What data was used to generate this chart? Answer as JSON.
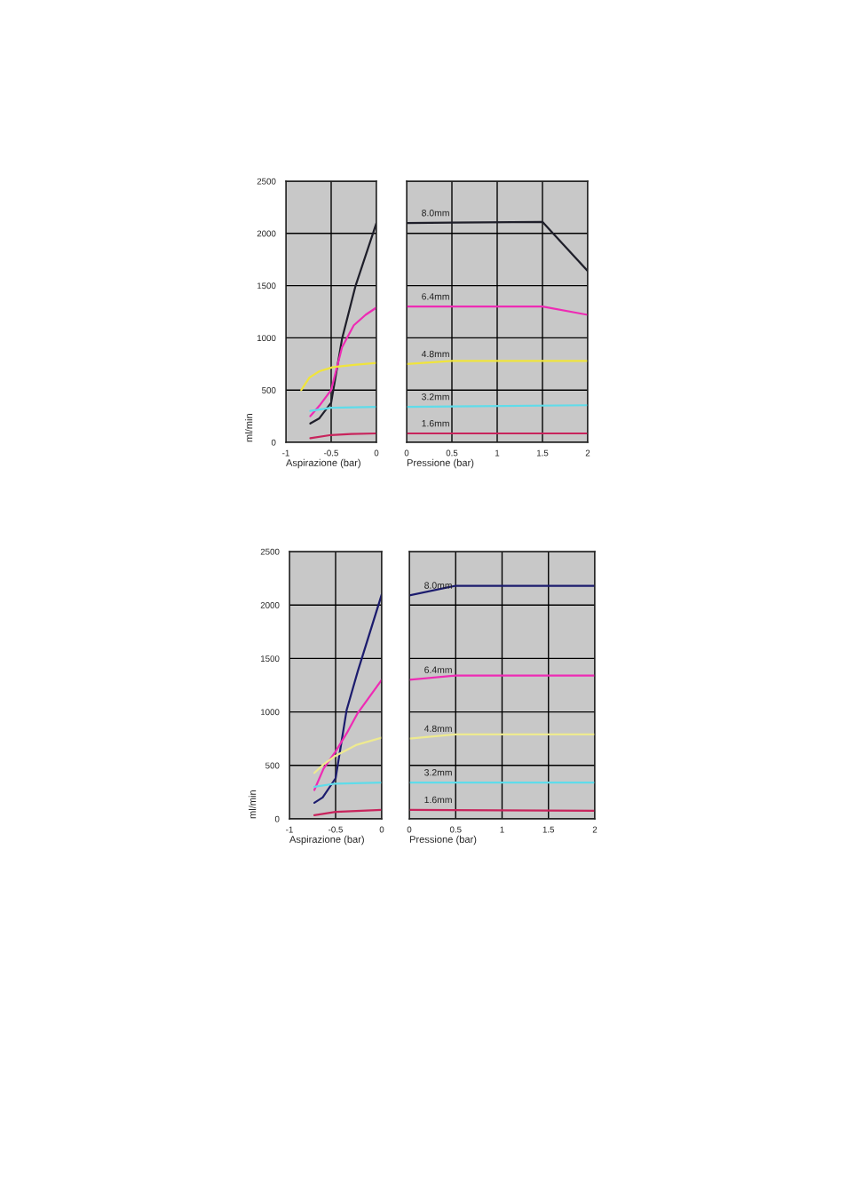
{
  "chart_data": [
    {
      "type": "line",
      "xlabel": "Aspirazione (bar)",
      "ylabel": "ml/min",
      "xlim": [
        -1,
        0
      ],
      "xticks": [
        -1,
        -0.5,
        0
      ],
      "ylim": [
        0,
        2500
      ],
      "yticks": [
        0,
        500,
        1000,
        1500,
        2000,
        2500
      ],
      "grid": true,
      "legend": false,
      "series": [
        {
          "color": "#1f1f2a",
          "x": [
            -0.73,
            -0.63,
            -0.5,
            -0.38,
            -0.23,
            0
          ],
          "values": [
            180,
            230,
            380,
            990,
            1500,
            2100
          ]
        },
        {
          "color": "#ee2bb4",
          "x": [
            -0.73,
            -0.63,
            -0.5,
            -0.38,
            -0.25,
            -0.12,
            0
          ],
          "values": [
            250,
            350,
            500,
            910,
            1120,
            1220,
            1290
          ]
        },
        {
          "color": "#f0e43c",
          "x": [
            -0.83,
            -0.74,
            -0.63,
            -0.48,
            -0.25,
            0
          ],
          "values": [
            500,
            620,
            680,
            720,
            740,
            760
          ]
        },
        {
          "color": "#5fdcea",
          "x": [
            -0.73,
            -0.5,
            0
          ],
          "values": [
            300,
            330,
            340
          ]
        },
        {
          "color": "#c8245c",
          "x": [
            -0.73,
            -0.5,
            -0.28,
            0
          ],
          "values": [
            40,
            70,
            80,
            85
          ]
        }
      ]
    },
    {
      "type": "line",
      "xlabel": "Pressione (bar)",
      "xlim": [
        0,
        2
      ],
      "xticks": [
        0,
        0.5,
        1,
        1.5,
        2
      ],
      "ylim": [
        0,
        2500
      ],
      "yticks": [
        0,
        500,
        1000,
        1500,
        2000,
        2500
      ],
      "tick_labels": "x",
      "grid": true,
      "legend": false,
      "series": [
        {
          "name": "8.0mm",
          "color": "#1f1f2a",
          "x": [
            0,
            1.5,
            2
          ],
          "values": [
            2100,
            2110,
            1640
          ]
        },
        {
          "name": "6.4mm",
          "color": "#ee2bb4",
          "x": [
            0,
            1.5,
            2
          ],
          "values": [
            1300,
            1300,
            1220
          ]
        },
        {
          "name": "4.8mm",
          "color": "#f0e43c",
          "x": [
            0,
            0.5,
            2
          ],
          "values": [
            750,
            780,
            780
          ]
        },
        {
          "name": "3.2mm",
          "color": "#5fdcea",
          "x": [
            0,
            2
          ],
          "values": [
            340,
            355
          ]
        },
        {
          "name": "1.6mm",
          "color": "#c8245c",
          "x": [
            0,
            2
          ],
          "values": [
            85,
            85
          ]
        }
      ]
    },
    {
      "type": "line",
      "xlabel": "Aspirazione (bar)",
      "ylabel": "ml/min",
      "xlim": [
        -1,
        0
      ],
      "xticks": [
        -1,
        -0.5,
        0
      ],
      "ylim": [
        0,
        2500
      ],
      "yticks": [
        0,
        500,
        1000,
        1500,
        2000,
        2500
      ],
      "grid": true,
      "legend": false,
      "series": [
        {
          "color": "#1c1c6e",
          "x": [
            -0.73,
            -0.64,
            -0.5,
            -0.38,
            -0.26,
            0
          ],
          "values": [
            150,
            200,
            380,
            1020,
            1380,
            2100
          ]
        },
        {
          "color": "#ee2bb4",
          "x": [
            -0.73,
            -0.63,
            -0.5,
            -0.38,
            -0.26,
            0
          ],
          "values": [
            270,
            470,
            630,
            800,
            990,
            1300
          ]
        },
        {
          "color": "#eeea90",
          "x": [
            -0.73,
            -0.63,
            -0.5,
            -0.28,
            0
          ],
          "values": [
            430,
            510,
            590,
            690,
            760
          ]
        },
        {
          "color": "#5fdcea",
          "x": [
            -0.73,
            -0.5,
            0
          ],
          "values": [
            300,
            330,
            340
          ]
        },
        {
          "color": "#c8245c",
          "x": [
            -0.73,
            -0.5,
            0
          ],
          "values": [
            35,
            65,
            85
          ]
        }
      ]
    },
    {
      "type": "line",
      "xlabel": "Pressione (bar)",
      "xlim": [
        0,
        2
      ],
      "xticks": [
        0,
        0.5,
        1,
        1.5,
        2
      ],
      "ylim": [
        0,
        2500
      ],
      "yticks": [
        0,
        500,
        1000,
        1500,
        2000,
        2500
      ],
      "tick_labels": "x",
      "grid": true,
      "legend": false,
      "series": [
        {
          "name": "8.0mm",
          "color": "#1c1c6e",
          "x": [
            0,
            0.5,
            2
          ],
          "values": [
            2090,
            2180,
            2180
          ]
        },
        {
          "name": "6.4mm",
          "color": "#ee2bb4",
          "x": [
            0,
            0.5,
            2
          ],
          "values": [
            1300,
            1340,
            1340
          ]
        },
        {
          "name": "4.8mm",
          "color": "#eeea90",
          "x": [
            0,
            0.5,
            2
          ],
          "values": [
            750,
            790,
            790
          ]
        },
        {
          "name": "3.2mm",
          "color": "#5fdcea",
          "x": [
            0,
            2
          ],
          "values": [
            340,
            340
          ]
        },
        {
          "name": "1.6mm",
          "color": "#c8245c",
          "x": [
            0,
            2
          ],
          "values": [
            85,
            75
          ]
        }
      ]
    }
  ]
}
